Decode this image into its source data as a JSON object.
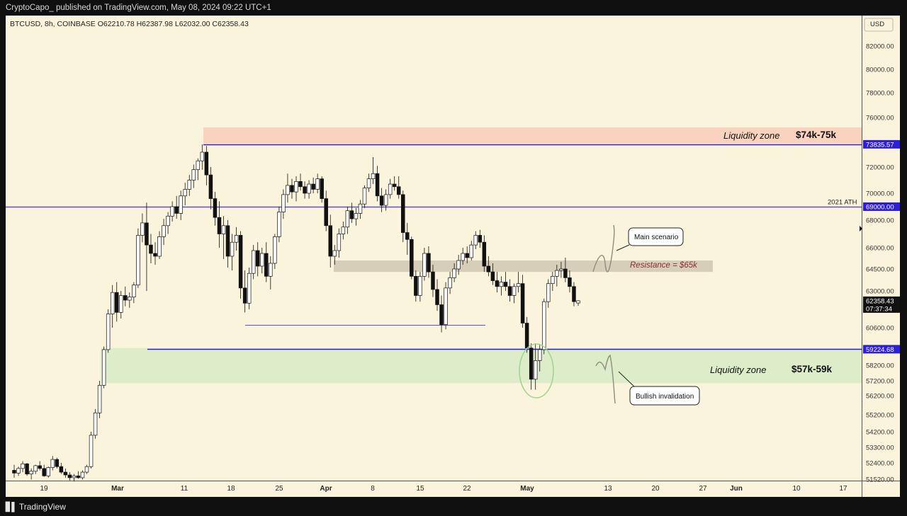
{
  "header": {
    "publisher_line": "CryptoCapo_ published on TradingView.com, May 08, 2024 09:22 UTC+1"
  },
  "footer": {
    "brand": "TradingView",
    "logo_icon": "tradingview-logo-icon"
  },
  "chart_data": {
    "type": "candlestick",
    "symbol_line": "BTCUSD, 8h, COINBASE  O62210.78  H62387.98  L62032.00  C62358.43",
    "currency": "USD",
    "ylim": [
      51200,
      83600
    ],
    "price_axis_labels": [
      "82000.00",
      "80000.00",
      "78000.00",
      "76000.00",
      "72000.00",
      "70000.00",
      "68000.00",
      "66000.00",
      "64500.00",
      "63000.00",
      "60600.00",
      "58200.00",
      "57200.00",
      "56200.00",
      "55200.00",
      "54200.00",
      "53300.00",
      "52400.00",
      "51520.00"
    ],
    "price_axis_values": [
      82000,
      80000,
      78000,
      76000,
      72000,
      70000,
      68000,
      66000,
      64500,
      63000,
      60600,
      58200,
      57200,
      56200,
      55200,
      54200,
      53300,
      52400,
      51520
    ],
    "time_axis_labels": [
      "19",
      "Mar",
      "11",
      "18",
      "25",
      "Apr",
      "8",
      "15",
      "22",
      "May",
      "13",
      "20",
      "27",
      "Jun",
      "10",
      "17"
    ],
    "time_axis_bold": [
      "Mar",
      "Apr",
      "May",
      "Jun"
    ],
    "price_tags": [
      {
        "text": "73835.57",
        "value": 73835.57,
        "style": "line"
      },
      {
        "text": "69000.00",
        "value": 69000,
        "style": "line"
      },
      {
        "text": "59224.68",
        "value": 59224.68,
        "style": "line"
      },
      {
        "text": "62358.43",
        "value": 62358.43,
        "style": "last"
      },
      {
        "text": "07:37:34",
        "value": 61900,
        "style": "countdown"
      }
    ],
    "horizontal_lines": [
      {
        "value": 73835.57,
        "color": "#2e1fd6"
      },
      {
        "value": 69000,
        "color": "#5e4fd6",
        "label": "2021 ATH"
      },
      {
        "value": 59224.68,
        "color": "#2e1fd6"
      }
    ],
    "zones": [
      {
        "name": "upper-liquidity-zone",
        "from": 73900,
        "to": 75200,
        "color": "#f8cdb8",
        "label": "Liquidity zone",
        "range_label": "$74k-75k"
      },
      {
        "name": "lower-liquidity-zone",
        "from": 57050,
        "to": 59300,
        "color": "#d7ebc7",
        "label": "Liquidity zone",
        "range_label": "$57k-59k"
      },
      {
        "name": "resistance-zone",
        "from": 64300,
        "to": 65100,
        "color": "#cfc7b3",
        "label": "Resistance = $65k"
      }
    ],
    "callouts": [
      {
        "name": "main-scenario-callout",
        "text": "Main scenario"
      },
      {
        "name": "bullish-invalidation-callout",
        "text": "Bullish invalidation"
      }
    ],
    "candles": [
      [
        52000,
        52300,
        51600,
        51850
      ],
      [
        51850,
        52200,
        51700,
        52100
      ],
      [
        52100,
        52500,
        51900,
        52350
      ],
      [
        52350,
        52400,
        51700,
        51800
      ],
      [
        51800,
        52100,
        51500,
        51950
      ],
      [
        51950,
        52300,
        51800,
        52250
      ],
      [
        52250,
        52500,
        52000,
        52100
      ],
      [
        52100,
        52300,
        51650,
        51700
      ],
      [
        51700,
        52200,
        51600,
        52150
      ],
      [
        52150,
        52800,
        52000,
        52600
      ],
      [
        52600,
        52700,
        52100,
        52200
      ],
      [
        52200,
        52400,
        51800,
        51900
      ],
      [
        51900,
        52100,
        51600,
        51750
      ],
      [
        51750,
        51900,
        51450,
        51600
      ],
      [
        51600,
        51800,
        51400,
        51700
      ],
      [
        51700,
        51950,
        51550,
        51600
      ],
      [
        51600,
        52000,
        51500,
        51900
      ],
      [
        51900,
        52300,
        51800,
        52200
      ],
      [
        52200,
        54200,
        52100,
        54000
      ],
      [
        54000,
        55500,
        53800,
        55300
      ],
      [
        55300,
        57200,
        55000,
        56900
      ],
      [
        56900,
        59400,
        56700,
        59200
      ],
      [
        59200,
        61800,
        59000,
        61500
      ],
      [
        61500,
        63400,
        60600,
        62900
      ],
      [
        62900,
        63600,
        61000,
        61600
      ],
      [
        61600,
        63000,
        61200,
        62700
      ],
      [
        62700,
        63300,
        62000,
        62400
      ],
      [
        62400,
        62900,
        61900,
        62600
      ],
      [
        62600,
        63600,
        62200,
        63400
      ],
      [
        63400,
        67400,
        63200,
        66900
      ],
      [
        66900,
        68500,
        66400,
        67800
      ],
      [
        67800,
        69300,
        63000,
        66200
      ],
      [
        66200,
        67000,
        64900,
        65600
      ],
      [
        65600,
        66400,
        64800,
        65400
      ],
      [
        65400,
        67200,
        65200,
        66800
      ],
      [
        66800,
        68100,
        66200,
        67600
      ],
      [
        67600,
        68600,
        67000,
        68300
      ],
      [
        68300,
        69400,
        67900,
        69000
      ],
      [
        69000,
        69800,
        68100,
        68500
      ],
      [
        68500,
        70200,
        68000,
        69800
      ],
      [
        69800,
        70800,
        69100,
        70300
      ],
      [
        70300,
        71400,
        69800,
        71000
      ],
      [
        71000,
        72200,
        70400,
        71800
      ],
      [
        71800,
        72700,
        71000,
        72500
      ],
      [
        72500,
        73835,
        71800,
        73200
      ],
      [
        73200,
        73700,
        70600,
        71400
      ],
      [
        71400,
        72000,
        68800,
        69600
      ],
      [
        69600,
        70100,
        67600,
        68200
      ],
      [
        68200,
        69400,
        66000,
        67000
      ],
      [
        67000,
        68300,
        65200,
        67600
      ],
      [
        67600,
        68000,
        64600,
        65400
      ],
      [
        65400,
        67000,
        64400,
        66400
      ],
      [
        66400,
        67500,
        65800,
        66900
      ],
      [
        66900,
        67200,
        62500,
        63200
      ],
      [
        63200,
        64400,
        61600,
        62200
      ],
      [
        62200,
        64600,
        61800,
        64200
      ],
      [
        64200,
        66200,
        63800,
        65800
      ],
      [
        65800,
        66400,
        64000,
        64700
      ],
      [
        64700,
        66000,
        64200,
        65600
      ],
      [
        65600,
        66400,
        63600,
        64000
      ],
      [
        64000,
        65400,
        63100,
        64900
      ],
      [
        64900,
        67000,
        64500,
        66800
      ],
      [
        66800,
        69000,
        66400,
        68600
      ],
      [
        68600,
        70300,
        68100,
        69900
      ],
      [
        69900,
        71500,
        69300,
        70600
      ],
      [
        70600,
        71100,
        69600,
        70100
      ],
      [
        70100,
        71300,
        69400,
        70900
      ],
      [
        70900,
        71500,
        70200,
        70500
      ],
      [
        70500,
        70900,
        69600,
        70000
      ],
      [
        70000,
        71000,
        69600,
        70700
      ],
      [
        70700,
        71200,
        70000,
        70300
      ],
      [
        70300,
        71500,
        70000,
        71100
      ],
      [
        71100,
        71300,
        69300,
        69600
      ],
      [
        69600,
        70200,
        67200,
        67600
      ],
      [
        67600,
        68400,
        64600,
        65400
      ],
      [
        65400,
        66200,
        64800,
        65800
      ],
      [
        65800,
        67400,
        65300,
        67000
      ],
      [
        67000,
        67900,
        66600,
        67500
      ],
      [
        67500,
        69000,
        67000,
        68700
      ],
      [
        68700,
        69300,
        67800,
        68100
      ],
      [
        68100,
        68900,
        67600,
        68500
      ],
      [
        68500,
        69500,
        68100,
        69200
      ],
      [
        69200,
        70600,
        68900,
        70400
      ],
      [
        70400,
        71500,
        70100,
        71100
      ],
      [
        71100,
        72800,
        70700,
        71500
      ],
      [
        71500,
        72100,
        69400,
        69800
      ],
      [
        69800,
        70400,
        68600,
        69100
      ],
      [
        69100,
        70300,
        68700,
        69900
      ],
      [
        69900,
        71100,
        69600,
        70700
      ],
      [
        70700,
        71300,
        70200,
        70500
      ],
      [
        70500,
        71300,
        69600,
        69900
      ],
      [
        69900,
        70200,
        66400,
        67100
      ],
      [
        67100,
        67800,
        65500,
        66600
      ],
      [
        66600,
        66800,
        63800,
        64000
      ],
      [
        64000,
        64400,
        62300,
        62700
      ],
      [
        62700,
        64300,
        62300,
        64000
      ],
      [
        64000,
        66000,
        63700,
        65600
      ],
      [
        65600,
        66100,
        63900,
        64300
      ],
      [
        64300,
        64800,
        62600,
        63100
      ],
      [
        63100,
        63800,
        61700,
        62100
      ],
      [
        62100,
        62700,
        60300,
        60800
      ],
      [
        60800,
        63600,
        60500,
        63200
      ],
      [
        63200,
        64300,
        62800,
        63900
      ],
      [
        63900,
        64900,
        63600,
        64500
      ],
      [
        64500,
        65500,
        64100,
        65100
      ],
      [
        65100,
        66000,
        64800,
        65600
      ],
      [
        65600,
        66100,
        64900,
        65300
      ],
      [
        65300,
        66500,
        65100,
        66200
      ],
      [
        66200,
        67200,
        65900,
        66900
      ],
      [
        66900,
        67300,
        66000,
        66400
      ],
      [
        66400,
        66900,
        64300,
        64700
      ],
      [
        64700,
        65400,
        64000,
        64300
      ],
      [
        64300,
        64900,
        63400,
        63700
      ],
      [
        63700,
        64300,
        62900,
        63300
      ],
      [
        63300,
        64000,
        62700,
        63600
      ],
      [
        63600,
        64300,
        63000,
        63300
      ],
      [
        63300,
        63800,
        62300,
        62700
      ],
      [
        62700,
        63500,
        62200,
        63300
      ],
      [
        63300,
        64300,
        62900,
        63500
      ],
      [
        63500,
        64100,
        60600,
        60900
      ],
      [
        60900,
        61300,
        59000,
        59300
      ],
      [
        59300,
        59600,
        56600,
        57300
      ],
      [
        57300,
        59600,
        56600,
        58500
      ],
      [
        58500,
        59500,
        57800,
        59200
      ],
      [
        59200,
        62500,
        58900,
        62300
      ],
      [
        62300,
        63800,
        61900,
        63500
      ],
      [
        63500,
        64300,
        63000,
        64000
      ],
      [
        64000,
        64800,
        63300,
        64400
      ],
      [
        64400,
        65000,
        63900,
        64500
      ],
      [
        64500,
        65300,
        63600,
        63900
      ],
      [
        63900,
        64400,
        62900,
        63300
      ],
      [
        63300,
        63600,
        62000,
        62300
      ],
      [
        62210.78,
        62387.98,
        62032,
        62358.43
      ]
    ]
  }
}
